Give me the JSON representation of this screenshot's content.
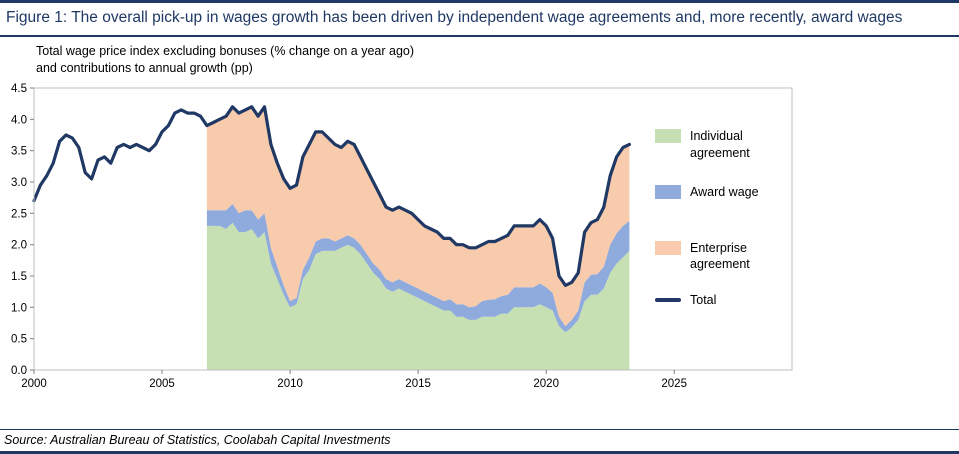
{
  "figure": {
    "title": "Figure 1: The overall pick-up in wages growth has been driven by independent wage agreements and, more recently, award wages",
    "subtitle_line1": "Total wage price index excluding bonuses (% change on a year ago)",
    "subtitle_line2": "and contributions to annual growth (pp)",
    "source": "Source: Australian Bureau of Statistics, Coolabah Capital Investments"
  },
  "colors": {
    "navy": "#1F3864",
    "individual": "#C6E0B4",
    "award": "#8FAADC",
    "enterprise": "#F8CBAD",
    "plot_border": "#BFBFBF",
    "tick": "#808080"
  },
  "legend": [
    {
      "label": "Individual agreement",
      "swatch": "area",
      "color": "#C6E0B4"
    },
    {
      "label": "Award wage",
      "swatch": "area",
      "color": "#8FAADC"
    },
    {
      "label": "Enterprise agreement",
      "swatch": "area",
      "color": "#F8CBAD"
    },
    {
      "label": "Total",
      "swatch": "line",
      "color": "#1F3864"
    }
  ],
  "chart_data": {
    "type": "area",
    "title": "Figure 1: The overall pick-up in wages growth has been driven by independent wage agreements and, more recently, award wages",
    "subtitle": "Total wage price index excluding bonuses (% change on a year ago) and contributions to annual growth (pp)",
    "xlabel": "",
    "ylabel": "",
    "xlim": [
      2000,
      2029.6
    ],
    "ylim": [
      0,
      4.5
    ],
    "x_ticks": [
      2000,
      2005,
      2010,
      2015,
      2020,
      2025
    ],
    "y_ticks": [
      0,
      0.5,
      1,
      1.5,
      2,
      2.5,
      3,
      3.5,
      4,
      4.5
    ],
    "grid": false,
    "legend_position": "right-inside",
    "stacked_area": {
      "x": [
        2006.75,
        2007,
        2007.25,
        2007.5,
        2007.75,
        2008,
        2008.25,
        2008.5,
        2008.75,
        2009,
        2009.25,
        2009.5,
        2009.75,
        2010,
        2010.25,
        2010.5,
        2010.75,
        2011,
        2011.25,
        2011.5,
        2011.75,
        2012,
        2012.25,
        2012.5,
        2012.75,
        2013,
        2013.25,
        2013.5,
        2013.75,
        2014,
        2014.25,
        2014.5,
        2014.75,
        2015,
        2015.25,
        2015.5,
        2015.75,
        2016,
        2016.25,
        2016.5,
        2016.75,
        2017,
        2017.25,
        2017.5,
        2017.75,
        2018,
        2018.25,
        2018.5,
        2018.75,
        2019,
        2019.25,
        2019.5,
        2019.75,
        2020,
        2020.25,
        2020.5,
        2020.75,
        2021,
        2021.25,
        2021.5,
        2021.75,
        2022,
        2022.25,
        2022.5,
        2022.75,
        2023,
        2023.25
      ],
      "series": [
        {
          "name": "Individual agreement",
          "color": "#C6E0B4",
          "values": [
            2.3,
            2.3,
            2.3,
            2.25,
            2.35,
            2.2,
            2.2,
            2.25,
            2.1,
            2.2,
            1.7,
            1.45,
            1.2,
            1.0,
            1.05,
            1.45,
            1.6,
            1.85,
            1.9,
            1.9,
            1.9,
            1.95,
            2.0,
            1.95,
            1.85,
            1.7,
            1.55,
            1.45,
            1.3,
            1.25,
            1.3,
            1.25,
            1.2,
            1.15,
            1.1,
            1.05,
            1.0,
            0.95,
            0.95,
            0.85,
            0.85,
            0.8,
            0.8,
            0.85,
            0.85,
            0.85,
            0.9,
            0.9,
            1.0,
            1.0,
            1.0,
            1.0,
            1.05,
            1.0,
            0.95,
            0.7,
            0.6,
            0.68,
            0.8,
            1.1,
            1.2,
            1.2,
            1.3,
            1.55,
            1.7,
            1.8,
            1.9
          ]
        },
        {
          "name": "Award wage",
          "color": "#8FAADC",
          "values": [
            0.25,
            0.25,
            0.25,
            0.3,
            0.3,
            0.3,
            0.35,
            0.3,
            0.3,
            0.3,
            0.25,
            0.2,
            0.15,
            0.1,
            0.1,
            0.15,
            0.2,
            0.2,
            0.2,
            0.2,
            0.15,
            0.15,
            0.15,
            0.15,
            0.15,
            0.15,
            0.15,
            0.15,
            0.15,
            0.15,
            0.15,
            0.15,
            0.15,
            0.15,
            0.15,
            0.15,
            0.15,
            0.15,
            0.18,
            0.2,
            0.2,
            0.2,
            0.22,
            0.25,
            0.27,
            0.28,
            0.28,
            0.3,
            0.32,
            0.32,
            0.32,
            0.32,
            0.33,
            0.32,
            0.28,
            0.15,
            0.1,
            0.12,
            0.15,
            0.3,
            0.32,
            0.33,
            0.35,
            0.45,
            0.48,
            0.5,
            0.48
          ]
        },
        {
          "name": "Enterprise agreement",
          "color": "#F8CBAD",
          "values": [
            1.35,
            1.4,
            1.45,
            1.5,
            1.55,
            1.6,
            1.6,
            1.65,
            1.65,
            1.7,
            1.65,
            1.65,
            1.7,
            1.8,
            1.8,
            1.8,
            1.8,
            1.75,
            1.7,
            1.6,
            1.55,
            1.45,
            1.5,
            1.5,
            1.4,
            1.35,
            1.3,
            1.2,
            1.15,
            1.15,
            1.15,
            1.15,
            1.15,
            1.1,
            1.05,
            1.05,
            1.05,
            1.0,
            0.97,
            0.95,
            0.95,
            0.95,
            0.93,
            0.9,
            0.93,
            0.92,
            0.92,
            0.95,
            0.98,
            0.98,
            0.98,
            0.98,
            1.02,
            0.98,
            0.87,
            0.65,
            0.65,
            0.6,
            0.6,
            0.8,
            0.83,
            0.87,
            0.95,
            1.1,
            1.22,
            1.25,
            1.22
          ]
        }
      ]
    },
    "total_line": {
      "name": "Total",
      "color": "#1F3864",
      "x": [
        2000,
        2000.25,
        2000.5,
        2000.75,
        2001,
        2001.25,
        2001.5,
        2001.75,
        2002,
        2002.25,
        2002.5,
        2002.75,
        2003,
        2003.25,
        2003.5,
        2003.75,
        2004,
        2004.25,
        2004.5,
        2004.75,
        2005,
        2005.25,
        2005.5,
        2005.75,
        2006,
        2006.25,
        2006.5,
        2006.75,
        2007,
        2007.25,
        2007.5,
        2007.75,
        2008,
        2008.25,
        2008.5,
        2008.75,
        2009,
        2009.25,
        2009.5,
        2009.75,
        2010,
        2010.25,
        2010.5,
        2010.75,
        2011,
        2011.25,
        2011.5,
        2011.75,
        2012,
        2012.25,
        2012.5,
        2012.75,
        2013,
        2013.25,
        2013.5,
        2013.75,
        2014,
        2014.25,
        2014.5,
        2014.75,
        2015,
        2015.25,
        2015.5,
        2015.75,
        2016,
        2016.25,
        2016.5,
        2016.75,
        2017,
        2017.25,
        2017.5,
        2017.75,
        2018,
        2018.25,
        2018.5,
        2018.75,
        2019,
        2019.25,
        2019.5,
        2019.75,
        2020,
        2020.25,
        2020.5,
        2020.75,
        2021,
        2021.25,
        2021.5,
        2021.75,
        2022,
        2022.25,
        2022.5,
        2022.75,
        2023,
        2023.25
      ],
      "y": [
        2.7,
        2.95,
        3.1,
        3.3,
        3.65,
        3.75,
        3.7,
        3.55,
        3.15,
        3.05,
        3.35,
        3.4,
        3.3,
        3.55,
        3.6,
        3.55,
        3.6,
        3.55,
        3.5,
        3.6,
        3.8,
        3.9,
        4.1,
        4.15,
        4.1,
        4.1,
        4.05,
        3.9,
        3.95,
        4.0,
        4.05,
        4.2,
        4.1,
        4.15,
        4.2,
        4.05,
        4.2,
        3.6,
        3.3,
        3.05,
        2.9,
        2.95,
        3.4,
        3.6,
        3.8,
        3.8,
        3.7,
        3.6,
        3.55,
        3.65,
        3.6,
        3.4,
        3.2,
        3.0,
        2.8,
        2.6,
        2.55,
        2.6,
        2.55,
        2.5,
        2.4,
        2.3,
        2.25,
        2.2,
        2.1,
        2.1,
        2.0,
        2.0,
        1.95,
        1.95,
        2.0,
        2.05,
        2.05,
        2.1,
        2.15,
        2.3,
        2.3,
        2.3,
        2.3,
        2.4,
        2.3,
        2.1,
        1.5,
        1.35,
        1.4,
        1.55,
        2.2,
        2.35,
        2.4,
        2.6,
        3.1,
        3.4,
        3.55,
        3.6
      ]
    }
  }
}
